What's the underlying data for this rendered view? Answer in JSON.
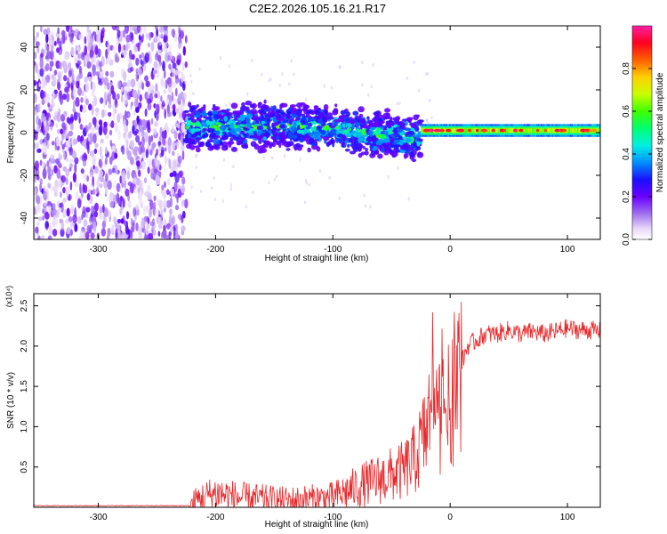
{
  "title": "C2E2.2026.105.16.21.R17",
  "colors": {
    "snr_line": "#e8282b",
    "axis": "#000000",
    "colormap": [
      "#ffffff",
      "#c8a8f0",
      "#8a2be2",
      "#3a00ff",
      "#0050ff",
      "#00d8ff",
      "#00ff80",
      "#60ff00",
      "#ffff00",
      "#ff8000",
      "#ff0000",
      "#ff1090"
    ]
  },
  "chart_data": [
    {
      "type": "heatmap",
      "name": "spectrogram",
      "xlabel": "Height of straight line (km)",
      "ylabel": "Frequency (Hz)",
      "xlim": [
        -355,
        128
      ],
      "ylim": [
        -50,
        50
      ],
      "xticks": [
        -300,
        -200,
        -100,
        0,
        100
      ],
      "xtick_labels": [
        "-300",
        "-200",
        "-100",
        "0",
        "100"
      ],
      "yticks": [
        -40,
        -20,
        0,
        20,
        40
      ],
      "ytick_labels": [
        "-40",
        "-20",
        "0",
        "20",
        "40"
      ],
      "colorbar": {
        "label": "Normalized spectral amplitude",
        "range": [
          0,
          1
        ],
        "ticks": [
          0.0,
          0.2,
          0.4,
          0.6,
          0.8
        ],
        "tick_labels": [
          "0.0",
          "0.2",
          "0.4",
          "0.6",
          "0.8"
        ]
      },
      "regions": [
        {
          "x": [
            -355,
            -225
          ],
          "freq": [
            -50,
            50
          ],
          "amplitude": [
            0.0,
            0.2
          ],
          "description": "broadband noise"
        },
        {
          "x": [
            -225,
            -25
          ],
          "freq_center": 3,
          "freq_halfwidth": 8,
          "amplitude": [
            0.1,
            0.55
          ],
          "description": "echo band"
        },
        {
          "x": [
            -25,
            128
          ],
          "freq_center": 1,
          "freq_halfwidth": 3,
          "amplitude": [
            0.3,
            1.0
          ],
          "description": "narrow band"
        }
      ]
    },
    {
      "type": "line",
      "name": "snr",
      "xlabel": "Height of straight line (km)",
      "ylabel": "SNR (10 * v/v)",
      "y_multiplier": "(x10⁴)",
      "xlim": [
        -355,
        128
      ],
      "ylim": [
        0,
        2.65
      ],
      "xticks": [
        -300,
        -200,
        -100,
        0,
        100
      ],
      "xtick_labels": [
        "-300",
        "-200",
        "-100",
        "0",
        "100"
      ],
      "yticks": [
        0.5,
        1.0,
        1.5,
        2.0,
        2.5
      ],
      "ytick_labels": [
        "0.5",
        "1.0",
        "1.5",
        "2.0",
        "2.5"
      ],
      "series": [
        {
          "name": "SNR",
          "x": [
            -355,
            -300,
            -250,
            -222,
            -215,
            -200,
            -190,
            -180,
            -160,
            -140,
            -120,
            -100,
            -80,
            -60,
            -40,
            -30,
            -20,
            -15,
            -12,
            -10,
            -5,
            0,
            5,
            10,
            15,
            20,
            30,
            40,
            50,
            60,
            70,
            80,
            90,
            95,
            100,
            110,
            120,
            128
          ],
          "values": [
            0.02,
            0.02,
            0.02,
            0.02,
            0.1,
            0.18,
            0.15,
            0.12,
            0.1,
            0.08,
            0.1,
            0.12,
            0.25,
            0.35,
            0.45,
            0.6,
            0.95,
            1.3,
            1.15,
            1.15,
            1.2,
            1.25,
            1.5,
            1.8,
            2.0,
            2.05,
            2.15,
            2.15,
            2.2,
            2.15,
            2.18,
            2.15,
            2.18,
            2.2,
            2.22,
            2.2,
            2.2,
            2.18
          ]
        }
      ]
    }
  ]
}
